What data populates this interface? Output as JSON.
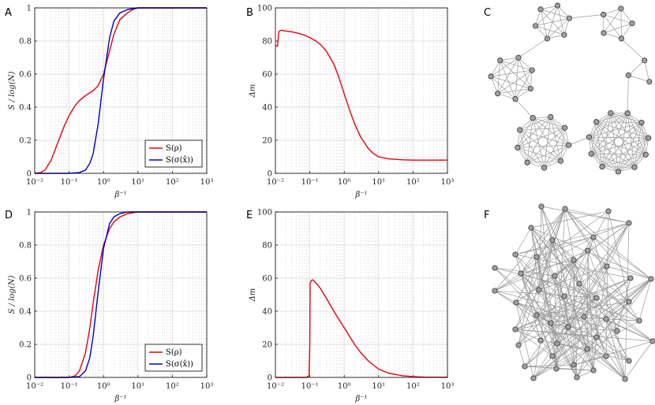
{
  "panels": [
    {
      "letter": "A"
    },
    {
      "letter": "B"
    },
    {
      "letter": "C"
    },
    {
      "letter": "D"
    },
    {
      "letter": "E"
    },
    {
      "letter": "F"
    }
  ],
  "colors": {
    "red_series": "#e8000b",
    "blue_series": "#0000c8",
    "grid": "#d8d8d8",
    "graph_node": "#a0a0a0",
    "graph_edge": "#9a9a9a"
  },
  "chart_data": [
    {
      "panel": "A",
      "type": "line",
      "x_scale": "log",
      "xlabel": "β⁻¹",
      "ylabel": "S / log(N)",
      "xlim": [
        0.01,
        1000
      ],
      "ylim": [
        0,
        1
      ],
      "x_ticks": [
        "10⁻²",
        "10⁻¹",
        "10⁰",
        "10¹",
        "10²",
        "10³"
      ],
      "y_ticks": [
        "0",
        "0.2",
        "0.4",
        "0.6",
        "0.8",
        "1"
      ],
      "grid": true,
      "legend": "bottom-right",
      "series": [
        {
          "name": "S(ρ)",
          "color": "#e8000b",
          "x": [
            0.01,
            0.015,
            0.02,
            0.03,
            0.05,
            0.07,
            0.1,
            0.15,
            0.2,
            0.3,
            0.5,
            0.7,
            1,
            1.5,
            2,
            3,
            5,
            7,
            10,
            20,
            50,
            100,
            1000
          ],
          "y": [
            0.0,
            0.005,
            0.02,
            0.08,
            0.2,
            0.28,
            0.35,
            0.41,
            0.44,
            0.47,
            0.5,
            0.53,
            0.6,
            0.74,
            0.84,
            0.93,
            0.97,
            0.99,
            1.0,
            1.0,
            1.0,
            1.0,
            1.0
          ]
        },
        {
          "name": "S(σ(x̂))",
          "color": "#0000c8",
          "x": [
            0.01,
            0.1,
            0.2,
            0.3,
            0.4,
            0.5,
            0.7,
            1,
            1.5,
            2,
            3,
            5,
            10,
            20,
            100,
            1000
          ],
          "y": [
            0.0,
            0.0,
            0.005,
            0.02,
            0.06,
            0.12,
            0.3,
            0.57,
            0.82,
            0.92,
            0.97,
            0.99,
            1.0,
            1.0,
            1.0,
            1.0
          ]
        }
      ]
    },
    {
      "panel": "B",
      "type": "line",
      "x_scale": "log",
      "xlabel": "β⁻¹",
      "ylabel": "Δm",
      "xlim": [
        0.01,
        1000
      ],
      "ylim": [
        0,
        100
      ],
      "x_ticks": [
        "10⁻²",
        "10⁻¹",
        "10⁰",
        "10¹",
        "10²",
        "10³"
      ],
      "y_ticks": [
        "0",
        "20",
        "40",
        "60",
        "80",
        "100"
      ],
      "grid": true,
      "series": [
        {
          "name": "",
          "color": "#e8000b",
          "x": [
            0.01,
            0.0115,
            0.0125,
            0.013,
            0.015,
            0.02,
            0.03,
            0.05,
            0.07,
            0.1,
            0.15,
            0.2,
            0.3,
            0.5,
            0.7,
            1,
            1.5,
            2,
            3,
            5,
            7,
            10,
            20,
            50,
            100,
            1000
          ],
          "y": [
            77,
            77,
            85,
            86,
            86.5,
            86,
            85.5,
            84.5,
            83.5,
            82,
            80,
            78,
            74,
            66,
            58,
            48,
            37,
            30,
            22,
            15,
            12,
            10,
            8.7,
            8.2,
            8,
            8
          ]
        }
      ]
    },
    {
      "panel": "D",
      "type": "line",
      "x_scale": "log",
      "xlabel": "β⁻¹",
      "ylabel": "S / log(N)",
      "xlim": [
        0.01,
        1000
      ],
      "ylim": [
        0,
        1
      ],
      "x_ticks": [
        "10⁻²",
        "10⁻¹",
        "10⁰",
        "10¹",
        "10²",
        "10³"
      ],
      "y_ticks": [
        "0",
        "0.2",
        "0.4",
        "0.6",
        "0.8",
        "1"
      ],
      "grid": true,
      "legend": "bottom-right",
      "series": [
        {
          "name": "S(ρ)",
          "color": "#e8000b",
          "x": [
            0.01,
            0.1,
            0.15,
            0.2,
            0.3,
            0.4,
            0.5,
            0.7,
            1,
            1.5,
            2,
            3,
            5,
            10,
            100,
            1000
          ],
          "y": [
            0.0,
            0.0,
            0.01,
            0.04,
            0.15,
            0.3,
            0.45,
            0.65,
            0.8,
            0.9,
            0.94,
            0.97,
            0.99,
            1.0,
            1.0,
            1.0
          ]
        },
        {
          "name": "S(σ(x̂))",
          "color": "#0000c8",
          "x": [
            0.01,
            0.1,
            0.2,
            0.3,
            0.4,
            0.5,
            0.7,
            1,
            1.5,
            2,
            3,
            5,
            10,
            100,
            1000
          ],
          "y": [
            0.0,
            0.0,
            0.005,
            0.04,
            0.12,
            0.25,
            0.52,
            0.78,
            0.93,
            0.97,
            0.99,
            1.0,
            1.0,
            1.0,
            1.0
          ]
        }
      ]
    },
    {
      "panel": "E",
      "type": "line",
      "x_scale": "log",
      "xlabel": "β⁻¹",
      "ylabel": "Δm",
      "xlim": [
        0.01,
        1000
      ],
      "ylim": [
        0,
        100
      ],
      "x_ticks": [
        "10⁻²",
        "10⁻¹",
        "10⁰",
        "10¹",
        "10²",
        "10³"
      ],
      "y_ticks": [
        "0",
        "20",
        "40",
        "60",
        "80",
        "100"
      ],
      "grid": true,
      "series": [
        {
          "name": "",
          "color": "#e8000b",
          "x": [
            0.01,
            0.05,
            0.08,
            0.095,
            0.1,
            0.102,
            0.11,
            0.12,
            0.13,
            0.15,
            0.2,
            0.3,
            0.5,
            0.7,
            1,
            2,
            3,
            5,
            10,
            20,
            50,
            100,
            200,
            1000
          ],
          "y": [
            0,
            0,
            0,
            1,
            20,
            57,
            58.5,
            59,
            58.5,
            57,
            54,
            48,
            40,
            35,
            30,
            20,
            15,
            10,
            5,
            2.5,
            1,
            0.5,
            0.2,
            0
          ]
        }
      ]
    }
  ]
}
